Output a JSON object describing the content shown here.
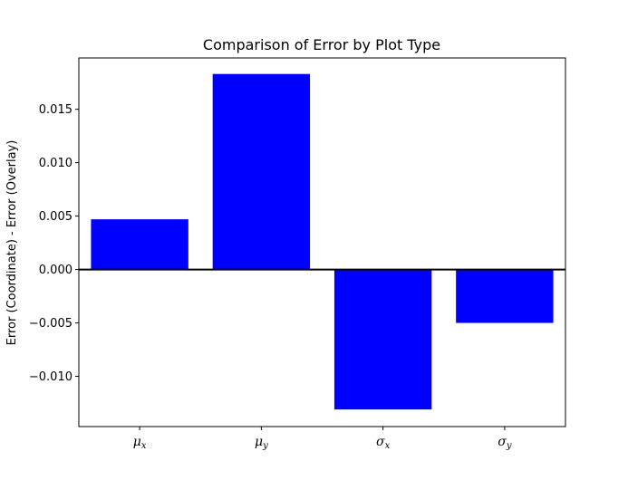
{
  "chart_data": {
    "type": "bar",
    "title": "Comparison of Error by Plot Type",
    "xlabel": "",
    "ylabel": "Error (Coordinate) - Error (Overlay)",
    "categories": [
      {
        "symbol": "μ",
        "subscript": "x"
      },
      {
        "symbol": "μ",
        "subscript": "y"
      },
      {
        "symbol": "σ",
        "subscript": "x"
      },
      {
        "symbol": "σ",
        "subscript": "y"
      }
    ],
    "values": [
      0.0047,
      0.0183,
      -0.0131,
      -0.005
    ],
    "ylim": [
      -0.0147,
      0.0198
    ],
    "yticks": [
      -0.01,
      -0.005,
      0.0,
      0.005,
      0.01,
      0.015
    ],
    "ytick_labels": [
      "−0.010",
      "−0.005",
      "0.000",
      "0.005",
      "0.010",
      "0.015"
    ],
    "bar_color": "#0000ff",
    "zero_line": true,
    "grid": false,
    "legend": "none"
  }
}
